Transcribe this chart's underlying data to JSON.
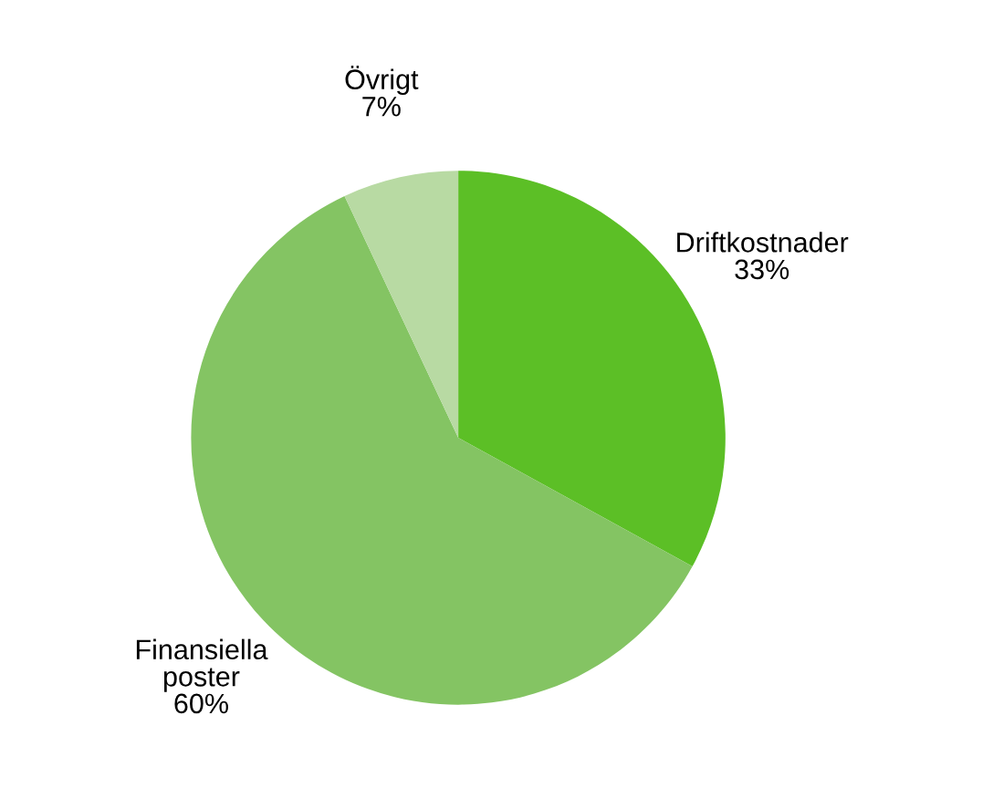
{
  "chart_data": {
    "type": "pie",
    "categories": [
      "Driftkostnader",
      "Finansiella\nposter",
      "Övrigt"
    ],
    "values": [
      33,
      60,
      7
    ],
    "value_labels": [
      "33%",
      "60%",
      "7%"
    ],
    "colors": [
      "#5cbf26",
      "#84c463",
      "#b8daa3"
    ],
    "legend": false
  }
}
